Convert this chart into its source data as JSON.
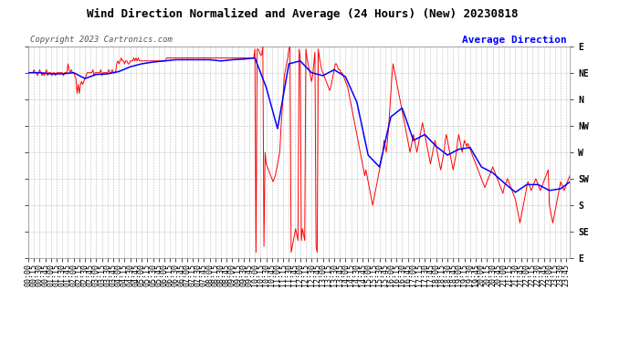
{
  "title": "Wind Direction Normalized and Average (24 Hours) (New) 20230818",
  "copyright": "Copyright 2023 Cartronics.com",
  "legend_blue": "Average Direction",
  "bg_color": "#ffffff",
  "plot_bg_color": "#ffffff",
  "grid_color": "#aaaaaa",
  "y_labels": [
    "E",
    "NE",
    "N",
    "NW",
    "W",
    "SW",
    "S",
    "SE",
    "E"
  ],
  "y_values": [
    360,
    315,
    270,
    225,
    180,
    135,
    90,
    45,
    0
  ],
  "red_line_color": "#ff0000",
  "blue_line_color": "#0000ff",
  "title_fontsize": 9,
  "axis_fontsize": 6,
  "copyright_fontsize": 6.5,
  "legend_fontsize": 8,
  "raw_data": [
    [
      0,
      315
    ],
    [
      3,
      315
    ],
    [
      6,
      315
    ],
    [
      9,
      315
    ],
    [
      12,
      315
    ],
    [
      15,
      320
    ],
    [
      18,
      315
    ],
    [
      21,
      315
    ],
    [
      24,
      310
    ],
    [
      27,
      315
    ],
    [
      30,
      320
    ],
    [
      33,
      315
    ],
    [
      36,
      310
    ],
    [
      39,
      315
    ],
    [
      42,
      310
    ],
    [
      45,
      315
    ],
    [
      48,
      320
    ],
    [
      51,
      310
    ],
    [
      54,
      315
    ],
    [
      57,
      315
    ],
    [
      60,
      315
    ],
    [
      63,
      310
    ],
    [
      66,
      315
    ],
    [
      69,
      315
    ],
    [
      72,
      310
    ],
    [
      75,
      315
    ],
    [
      78,
      315
    ],
    [
      81,
      315
    ],
    [
      84,
      315
    ],
    [
      87,
      315
    ],
    [
      90,
      315
    ],
    [
      93,
      310
    ],
    [
      96,
      315
    ],
    [
      99,
      315
    ],
    [
      102,
      315
    ],
    [
      105,
      330
    ],
    [
      108,
      320
    ],
    [
      111,
      315
    ],
    [
      114,
      320
    ],
    [
      117,
      315
    ],
    [
      120,
      315
    ],
    [
      123,
      310
    ],
    [
      126,
      305
    ],
    [
      129,
      280
    ],
    [
      132,
      295
    ],
    [
      135,
      280
    ],
    [
      138,
      295
    ],
    [
      141,
      300
    ],
    [
      144,
      295
    ],
    [
      147,
      300
    ],
    [
      150,
      305
    ],
    [
      153,
      310
    ],
    [
      156,
      315
    ],
    [
      159,
      315
    ],
    [
      162,
      315
    ],
    [
      165,
      315
    ],
    [
      168,
      315
    ],
    [
      171,
      320
    ],
    [
      174,
      310
    ],
    [
      177,
      315
    ],
    [
      180,
      315
    ],
    [
      183,
      315
    ],
    [
      186,
      315
    ],
    [
      189,
      315
    ],
    [
      192,
      320
    ],
    [
      195,
      310
    ],
    [
      198,
      315
    ],
    [
      201,
      315
    ],
    [
      204,
      315
    ],
    [
      207,
      315
    ],
    [
      210,
      315
    ],
    [
      213,
      320
    ],
    [
      216,
      315
    ],
    [
      219,
      315
    ],
    [
      222,
      320
    ],
    [
      225,
      315
    ],
    [
      228,
      315
    ],
    [
      231,
      315
    ],
    [
      234,
      330
    ],
    [
      237,
      335
    ],
    [
      240,
      330
    ],
    [
      243,
      335
    ],
    [
      246,
      340
    ],
    [
      249,
      335
    ],
    [
      252,
      335
    ],
    [
      255,
      330
    ],
    [
      258,
      335
    ],
    [
      261,
      335
    ],
    [
      264,
      330
    ],
    [
      267,
      330
    ],
    [
      270,
      335
    ],
    [
      273,
      335
    ],
    [
      276,
      335
    ],
    [
      279,
      340
    ],
    [
      282,
      335
    ],
    [
      285,
      340
    ],
    [
      288,
      335
    ],
    [
      291,
      340
    ],
    [
      294,
      335
    ],
    [
      297,
      335
    ],
    [
      300,
      335
    ],
    [
      303,
      335
    ],
    [
      306,
      335
    ],
    [
      309,
      335
    ],
    [
      312,
      335
    ],
    [
      315,
      335
    ],
    [
      318,
      335
    ],
    [
      321,
      335
    ],
    [
      324,
      335
    ],
    [
      327,
      335
    ],
    [
      330,
      335
    ],
    [
      333,
      335
    ],
    [
      336,
      335
    ],
    [
      339,
      335
    ],
    [
      342,
      335
    ],
    [
      345,
      335
    ],
    [
      348,
      335
    ],
    [
      351,
      335
    ],
    [
      354,
      335
    ],
    [
      357,
      335
    ],
    [
      360,
      335
    ],
    [
      363,
      335
    ],
    [
      366,
      340
    ],
    [
      369,
      340
    ],
    [
      372,
      340
    ],
    [
      375,
      340
    ],
    [
      378,
      340
    ],
    [
      381,
      340
    ],
    [
      384,
      340
    ],
    [
      387,
      340
    ],
    [
      390,
      340
    ],
    [
      393,
      340
    ],
    [
      396,
      340
    ],
    [
      399,
      340
    ],
    [
      402,
      340
    ],
    [
      405,
      340
    ],
    [
      408,
      340
    ],
    [
      411,
      340
    ],
    [
      414,
      340
    ],
    [
      417,
      340
    ],
    [
      420,
      340
    ],
    [
      423,
      340
    ],
    [
      426,
      340
    ],
    [
      429,
      340
    ],
    [
      432,
      340
    ],
    [
      435,
      340
    ],
    [
      438,
      340
    ],
    [
      441,
      340
    ],
    [
      444,
      340
    ],
    [
      447,
      340
    ],
    [
      450,
      340
    ],
    [
      453,
      340
    ],
    [
      456,
      340
    ],
    [
      459,
      340
    ],
    [
      462,
      340
    ],
    [
      465,
      340
    ],
    [
      468,
      340
    ],
    [
      471,
      340
    ],
    [
      474,
      340
    ],
    [
      477,
      340
    ],
    [
      480,
      340
    ],
    [
      483,
      340
    ],
    [
      486,
      340
    ],
    [
      489,
      340
    ],
    [
      492,
      340
    ],
    [
      495,
      340
    ],
    [
      498,
      340
    ],
    [
      501,
      340
    ],
    [
      504,
      340
    ],
    [
      507,
      340
    ],
    [
      510,
      340
    ],
    [
      513,
      340
    ],
    [
      516,
      340
    ],
    [
      519,
      340
    ],
    [
      522,
      340
    ],
    [
      525,
      340
    ],
    [
      528,
      340
    ],
    [
      531,
      340
    ],
    [
      534,
      340
    ],
    [
      537,
      340
    ],
    [
      540,
      340
    ],
    [
      543,
      340
    ],
    [
      546,
      340
    ],
    [
      549,
      340
    ],
    [
      552,
      340
    ],
    [
      555,
      340
    ],
    [
      558,
      340
    ],
    [
      561,
      340
    ],
    [
      564,
      340
    ],
    [
      567,
      340
    ],
    [
      570,
      340
    ],
    [
      573,
      340
    ],
    [
      576,
      340
    ],
    [
      579,
      340
    ],
    [
      582,
      340
    ],
    [
      585,
      340
    ],
    [
      588,
      340
    ],
    [
      591,
      340
    ],
    [
      594,
      340
    ],
    [
      597,
      340
    ],
    [
      600,
      355
    ],
    [
      603,
      10
    ],
    [
      606,
      355
    ],
    [
      609,
      355
    ],
    [
      612,
      350
    ],
    [
      615,
      345
    ],
    [
      618,
      345
    ],
    [
      621,
      360
    ],
    [
      624,
      20
    ],
    [
      627,
      180
    ],
    [
      630,
      160
    ],
    [
      633,
      155
    ],
    [
      636,
      150
    ],
    [
      639,
      145
    ],
    [
      642,
      140
    ],
    [
      645,
      135
    ],
    [
      648,
      130
    ],
    [
      651,
      135
    ],
    [
      654,
      140
    ],
    [
      657,
      150
    ],
    [
      660,
      160
    ],
    [
      663,
      170
    ],
    [
      666,
      180
    ],
    [
      669,
      220
    ],
    [
      672,
      250
    ],
    [
      675,
      280
    ],
    [
      678,
      310
    ],
    [
      681,
      320
    ],
    [
      684,
      330
    ],
    [
      687,
      340
    ],
    [
      690,
      355
    ],
    [
      693,
      360
    ],
    [
      696,
      10
    ],
    [
      699,
      20
    ],
    [
      702,
      30
    ],
    [
      705,
      40
    ],
    [
      708,
      50
    ],
    [
      711,
      40
    ],
    [
      714,
      30
    ],
    [
      717,
      355
    ],
    [
      720,
      340
    ],
    [
      723,
      30
    ],
    [
      726,
      50
    ],
    [
      729,
      40
    ],
    [
      732,
      30
    ],
    [
      735,
      355
    ],
    [
      738,
      340
    ],
    [
      741,
      330
    ],
    [
      744,
      320
    ],
    [
      747,
      310
    ],
    [
      750,
      300
    ],
    [
      753,
      310
    ],
    [
      756,
      330
    ],
    [
      759,
      350
    ],
    [
      762,
      20
    ],
    [
      765,
      10
    ],
    [
      768,
      355
    ],
    [
      771,
      340
    ],
    [
      774,
      330
    ],
    [
      777,
      320
    ],
    [
      780,
      315
    ],
    [
      783,
      310
    ],
    [
      786,
      305
    ],
    [
      789,
      300
    ],
    [
      792,
      295
    ],
    [
      795,
      290
    ],
    [
      798,
      285
    ],
    [
      801,
      290
    ],
    [
      804,
      300
    ],
    [
      807,
      310
    ],
    [
      810,
      320
    ],
    [
      813,
      330
    ],
    [
      816,
      330
    ],
    [
      819,
      325
    ],
    [
      822,
      320
    ],
    [
      825,
      320
    ],
    [
      828,
      315
    ],
    [
      831,
      315
    ],
    [
      834,
      310
    ],
    [
      837,
      305
    ],
    [
      840,
      300
    ],
    [
      843,
      295
    ],
    [
      846,
      290
    ],
    [
      849,
      280
    ],
    [
      852,
      270
    ],
    [
      855,
      260
    ],
    [
      858,
      250
    ],
    [
      861,
      240
    ],
    [
      864,
      230
    ],
    [
      867,
      220
    ],
    [
      870,
      210
    ],
    [
      873,
      200
    ],
    [
      876,
      190
    ],
    [
      879,
      180
    ],
    [
      882,
      170
    ],
    [
      885,
      160
    ],
    [
      888,
      150
    ],
    [
      891,
      140
    ],
    [
      894,
      150
    ],
    [
      897,
      140
    ],
    [
      900,
      130
    ],
    [
      903,
      120
    ],
    [
      906,
      110
    ],
    [
      909,
      100
    ],
    [
      912,
      90
    ],
    [
      915,
      100
    ],
    [
      918,
      110
    ],
    [
      921,
      120
    ],
    [
      924,
      130
    ],
    [
      927,
      140
    ],
    [
      930,
      150
    ],
    [
      933,
      160
    ],
    [
      936,
      170
    ],
    [
      939,
      180
    ],
    [
      942,
      200
    ],
    [
      945,
      190
    ],
    [
      948,
      180
    ],
    [
      951,
      200
    ],
    [
      954,
      220
    ],
    [
      957,
      250
    ],
    [
      960,
      280
    ],
    [
      963,
      310
    ],
    [
      966,
      330
    ],
    [
      969,
      320
    ],
    [
      972,
      310
    ],
    [
      975,
      300
    ],
    [
      978,
      290
    ],
    [
      981,
      280
    ],
    [
      984,
      270
    ],
    [
      987,
      260
    ],
    [
      990,
      250
    ],
    [
      993,
      240
    ],
    [
      996,
      230
    ],
    [
      999,
      220
    ],
    [
      1002,
      210
    ],
    [
      1005,
      200
    ],
    [
      1008,
      190
    ],
    [
      1011,
      180
    ],
    [
      1014,
      190
    ],
    [
      1017,
      200
    ],
    [
      1020,
      210
    ],
    [
      1023,
      200
    ],
    [
      1026,
      190
    ],
    [
      1029,
      180
    ],
    [
      1032,
      190
    ],
    [
      1035,
      200
    ],
    [
      1038,
      210
    ],
    [
      1041,
      220
    ],
    [
      1044,
      230
    ],
    [
      1047,
      220
    ],
    [
      1050,
      210
    ],
    [
      1053,
      200
    ],
    [
      1056,
      190
    ],
    [
      1059,
      180
    ],
    [
      1062,
      170
    ],
    [
      1065,
      160
    ],
    [
      1068,
      170
    ],
    [
      1071,
      180
    ],
    [
      1074,
      190
    ],
    [
      1077,
      200
    ],
    [
      1080,
      190
    ],
    [
      1083,
      180
    ],
    [
      1086,
      170
    ],
    [
      1089,
      160
    ],
    [
      1092,
      150
    ],
    [
      1095,
      160
    ],
    [
      1098,
      170
    ],
    [
      1101,
      180
    ],
    [
      1104,
      200
    ],
    [
      1107,
      210
    ],
    [
      1110,
      200
    ],
    [
      1113,
      190
    ],
    [
      1116,
      180
    ],
    [
      1119,
      170
    ],
    [
      1122,
      160
    ],
    [
      1125,
      150
    ],
    [
      1128,
      160
    ],
    [
      1131,
      170
    ],
    [
      1134,
      180
    ],
    [
      1137,
      200
    ],
    [
      1140,
      210
    ],
    [
      1143,
      200
    ],
    [
      1146,
      190
    ],
    [
      1149,
      180
    ],
    [
      1152,
      190
    ],
    [
      1155,
      200
    ],
    [
      1158,
      195
    ],
    [
      1161,
      190
    ],
    [
      1164,
      195
    ],
    [
      1167,
      190
    ],
    [
      1170,
      185
    ],
    [
      1173,
      180
    ],
    [
      1176,
      175
    ],
    [
      1179,
      170
    ],
    [
      1182,
      165
    ],
    [
      1185,
      160
    ],
    [
      1188,
      155
    ],
    [
      1191,
      150
    ],
    [
      1194,
      145
    ],
    [
      1197,
      140
    ],
    [
      1200,
      135
    ],
    [
      1203,
      130
    ],
    [
      1206,
      125
    ],
    [
      1209,
      120
    ],
    [
      1212,
      125
    ],
    [
      1215,
      130
    ],
    [
      1218,
      135
    ],
    [
      1221,
      140
    ],
    [
      1224,
      145
    ],
    [
      1227,
      150
    ],
    [
      1230,
      155
    ],
    [
      1233,
      150
    ],
    [
      1236,
      145
    ],
    [
      1239,
      140
    ],
    [
      1242,
      135
    ],
    [
      1245,
      130
    ],
    [
      1248,
      125
    ],
    [
      1251,
      120
    ],
    [
      1254,
      115
    ],
    [
      1257,
      110
    ],
    [
      1260,
      120
    ],
    [
      1263,
      125
    ],
    [
      1266,
      130
    ],
    [
      1269,
      135
    ],
    [
      1272,
      130
    ],
    [
      1275,
      125
    ],
    [
      1278,
      120
    ],
    [
      1281,
      115
    ],
    [
      1284,
      110
    ],
    [
      1287,
      105
    ],
    [
      1290,
      100
    ],
    [
      1293,
      90
    ],
    [
      1296,
      80
    ],
    [
      1299,
      70
    ],
    [
      1302,
      60
    ],
    [
      1305,
      70
    ],
    [
      1308,
      80
    ],
    [
      1311,
      90
    ],
    [
      1314,
      100
    ],
    [
      1317,
      110
    ],
    [
      1320,
      120
    ],
    [
      1323,
      130
    ],
    [
      1326,
      125
    ],
    [
      1329,
      120
    ],
    [
      1332,
      115
    ],
    [
      1335,
      120
    ],
    [
      1338,
      125
    ],
    [
      1341,
      130
    ],
    [
      1344,
      135
    ],
    [
      1347,
      130
    ],
    [
      1350,
      125
    ],
    [
      1353,
      120
    ],
    [
      1356,
      115
    ],
    [
      1359,
      120
    ],
    [
      1362,
      125
    ],
    [
      1365,
      130
    ],
    [
      1368,
      135
    ],
    [
      1371,
      140
    ],
    [
      1374,
      145
    ],
    [
      1377,
      150
    ],
    [
      1380,
      90
    ],
    [
      1383,
      80
    ],
    [
      1386,
      70
    ],
    [
      1389,
      60
    ],
    [
      1392,
      70
    ],
    [
      1395,
      80
    ],
    [
      1398,
      90
    ],
    [
      1401,
      100
    ],
    [
      1404,
      110
    ],
    [
      1407,
      120
    ],
    [
      1410,
      130
    ],
    [
      1413,
      125
    ],
    [
      1416,
      120
    ],
    [
      1419,
      115
    ],
    [
      1422,
      120
    ],
    [
      1425,
      125
    ],
    [
      1428,
      130
    ],
    [
      1431,
      135
    ],
    [
      1434,
      140
    ]
  ],
  "avg_data": [
    [
      0,
      315
    ],
    [
      30,
      315
    ],
    [
      60,
      313
    ],
    [
      90,
      313
    ],
    [
      120,
      315
    ],
    [
      150,
      305
    ],
    [
      180,
      312
    ],
    [
      210,
      313
    ],
    [
      240,
      317
    ],
    [
      270,
      325
    ],
    [
      300,
      330
    ],
    [
      330,
      333
    ],
    [
      360,
      335
    ],
    [
      390,
      337
    ],
    [
      420,
      337
    ],
    [
      450,
      337
    ],
    [
      480,
      337
    ],
    [
      510,
      335
    ],
    [
      540,
      337
    ],
    [
      570,
      338
    ],
    [
      600,
      340
    ],
    [
      630,
      290
    ],
    [
      660,
      220
    ],
    [
      690,
      330
    ],
    [
      720,
      335
    ],
    [
      750,
      315
    ],
    [
      780,
      310
    ],
    [
      810,
      320
    ],
    [
      840,
      308
    ],
    [
      870,
      265
    ],
    [
      900,
      175
    ],
    [
      930,
      155
    ],
    [
      960,
      240
    ],
    [
      990,
      255
    ],
    [
      1020,
      200
    ],
    [
      1050,
      210
    ],
    [
      1080,
      190
    ],
    [
      1110,
      175
    ],
    [
      1140,
      185
    ],
    [
      1170,
      188
    ],
    [
      1200,
      155
    ],
    [
      1230,
      145
    ],
    [
      1260,
      128
    ],
    [
      1290,
      112
    ],
    [
      1320,
      125
    ],
    [
      1350,
      125
    ],
    [
      1380,
      115
    ],
    [
      1410,
      118
    ],
    [
      1435,
      130
    ]
  ]
}
